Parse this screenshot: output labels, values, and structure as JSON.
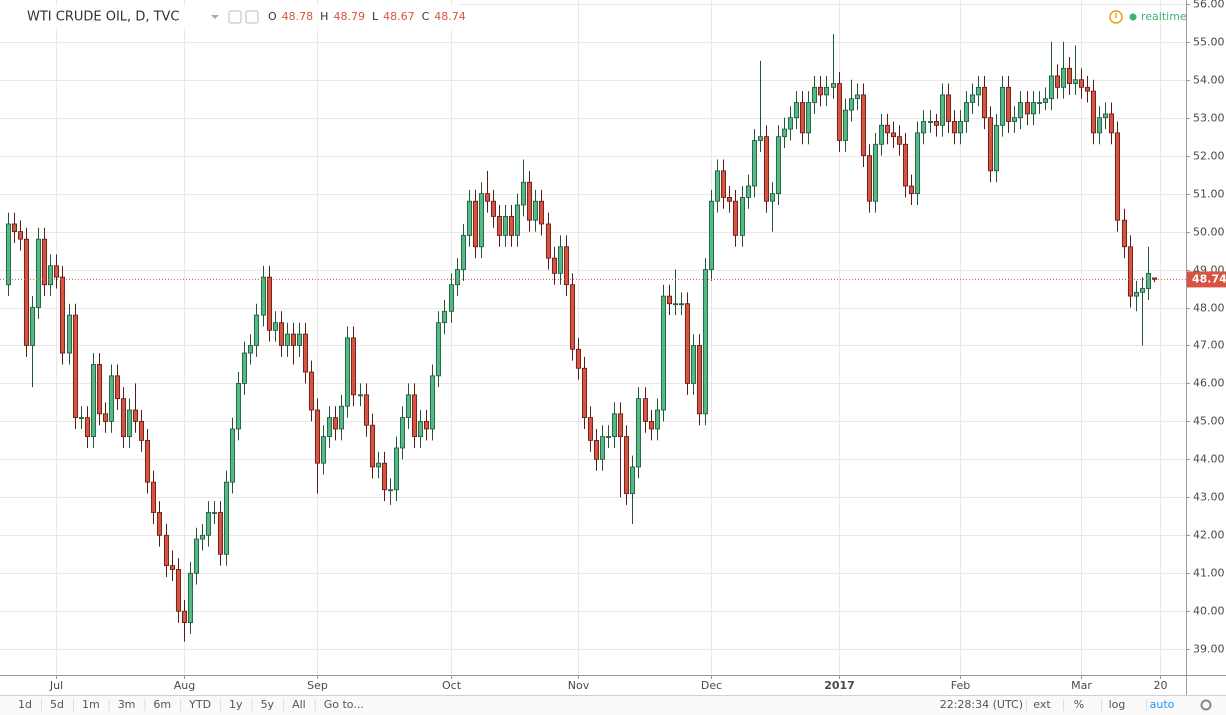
{
  "chart_data": {
    "type": "candlestick",
    "title": "WTI CRUDE OIL, D, TVC",
    "up_color": "#53b987",
    "up_border": "#225437",
    "down_color": "#d75442",
    "down_border": "#5b1a13",
    "grid": true,
    "xlim": [
      -1.3,
      194.3
    ],
    "xticks": [
      {
        "value": 8,
        "label": "Jul"
      },
      {
        "value": 29,
        "label": "Aug"
      },
      {
        "value": 51,
        "label": "Sep"
      },
      {
        "value": 73,
        "label": "Oct"
      },
      {
        "value": 94,
        "label": "Nov"
      },
      {
        "value": 116,
        "label": "Dec"
      },
      {
        "value": 137,
        "label": "2017"
      },
      {
        "value": 157,
        "label": "Feb"
      },
      {
        "value": 177,
        "label": "Mar"
      },
      {
        "value": 190,
        "label": "20"
      }
    ],
    "ylim": [
      38.32,
      56.1
    ],
    "yticks": [
      {
        "value": 39,
        "label": "39.00"
      },
      {
        "value": 40,
        "label": "40.00"
      },
      {
        "value": 41,
        "label": "41.00"
      },
      {
        "value": 42,
        "label": "42.00"
      },
      {
        "value": 43,
        "label": "43.00"
      },
      {
        "value": 44,
        "label": "44.00"
      },
      {
        "value": 45,
        "label": "45.00"
      },
      {
        "value": 46,
        "label": "46.00"
      },
      {
        "value": 47,
        "label": "47.00"
      },
      {
        "value": 48,
        "label": "48.00"
      },
      {
        "value": 49,
        "label": "49.00"
      },
      {
        "value": 50,
        "label": "50.00"
      },
      {
        "value": 51,
        "label": "51.00"
      },
      {
        "value": 52,
        "label": "52.00"
      },
      {
        "value": 53,
        "label": "53.00"
      },
      {
        "value": 54,
        "label": "54.00"
      },
      {
        "value": 55,
        "label": "55.00"
      },
      {
        "value": 56,
        "label": "56.00"
      }
    ],
    "open": [
      48.6,
      50.2,
      50.0,
      49.8,
      47.0,
      48.0,
      49.8,
      48.6,
      49.1,
      48.8,
      46.8,
      47.8,
      45.1,
      45.1,
      44.6,
      46.5,
      45.2,
      45.0,
      46.2,
      45.6,
      44.6,
      45.3,
      45.0,
      44.5,
      43.4,
      42.6,
      42.0,
      41.2,
      41.1,
      40.0,
      39.7,
      41.0,
      41.9,
      42.0,
      42.6,
      42.6,
      41.5,
      43.4,
      44.8,
      46.0,
      46.8,
      47.0,
      47.8,
      48.8,
      47.4,
      47.6,
      47.0,
      47.3,
      47.0,
      47.3,
      46.3,
      45.3,
      43.9,
      44.6,
      45.1,
      44.8,
      45.4,
      47.2,
      45.7,
      45.7,
      44.9,
      43.8,
      43.9,
      43.2,
      43.2,
      44.3,
      45.1,
      45.7,
      44.6,
      45.0,
      44.8,
      46.2,
      47.6,
      47.9,
      48.6,
      49.0,
      49.9,
      50.8,
      49.6,
      51.0,
      50.8,
      50.4,
      49.9,
      50.4,
      49.9,
      50.7,
      51.3,
      50.3,
      50.8,
      50.2,
      49.3,
      48.9,
      49.6,
      48.6,
      46.9,
      46.4,
      45.1,
      44.5,
      44.0,
      44.6,
      44.6,
      45.2,
      44.6,
      43.1,
      43.8,
      45.6,
      45.0,
      44.8,
      45.3,
      48.3,
      48.1,
      48.1,
      48.1,
      46.0,
      47.0,
      45.2,
      49.0,
      50.8,
      51.6,
      50.9,
      50.8,
      49.9,
      50.9,
      51.2,
      52.4,
      52.5,
      50.8,
      51.0,
      52.5,
      52.7,
      53.0,
      53.4,
      52.6,
      53.4,
      53.8,
      53.6,
      53.8,
      53.9,
      52.4,
      53.2,
      53.5,
      53.6,
      52.0,
      50.8,
      52.3,
      52.8,
      52.6,
      52.5,
      52.3,
      51.2,
      51.0,
      52.6,
      52.9,
      52.9,
      52.8,
      53.6,
      52.9,
      52.6,
      52.9,
      53.4,
      53.6,
      53.8,
      53.0,
      51.6,
      52.8,
      53.8,
      52.9,
      53.0,
      53.4,
      53.1,
      53.4,
      53.4,
      53.5,
      54.1,
      53.8,
      54.3,
      53.9,
      54.0,
      53.8,
      53.7,
      52.6,
      53.0,
      53.1,
      52.6,
      50.3,
      49.6,
      48.3,
      48.4,
      48.5,
      48.78
    ],
    "high": [
      50.5,
      50.5,
      50.3,
      50.1,
      48.3,
      50.1,
      50.1,
      49.4,
      49.4,
      49.1,
      48.1,
      48.1,
      45.4,
      45.4,
      46.8,
      46.8,
      45.5,
      46.5,
      46.5,
      45.9,
      45.6,
      46.0,
      45.3,
      44.8,
      43.7,
      42.9,
      42.3,
      41.6,
      41.4,
      40.3,
      41.3,
      42.2,
      42.3,
      42.9,
      42.9,
      42.9,
      43.7,
      45.1,
      46.3,
      47.1,
      47.3,
      48.1,
      49.1,
      49.1,
      47.9,
      47.9,
      47.6,
      47.6,
      47.6,
      47.6,
      46.6,
      45.6,
      44.9,
      45.4,
      45.4,
      45.7,
      47.5,
      47.5,
      46.0,
      46.0,
      45.2,
      44.2,
      44.2,
      43.5,
      44.6,
      45.4,
      46.0,
      46.0,
      45.3,
      45.3,
      46.5,
      47.9,
      48.2,
      48.9,
      49.3,
      50.2,
      51.1,
      51.1,
      51.3,
      51.6,
      51.1,
      50.7,
      50.7,
      50.7,
      51.0,
      51.9,
      51.6,
      51.1,
      51.1,
      50.5,
      49.6,
      49.9,
      49.9,
      48.9,
      47.2,
      46.7,
      45.4,
      44.8,
      44.9,
      44.9,
      45.5,
      45.5,
      44.9,
      44.1,
      45.9,
      45.9,
      45.3,
      45.6,
      48.6,
      48.6,
      49.0,
      48.4,
      48.4,
      47.3,
      47.3,
      49.3,
      51.1,
      51.9,
      51.9,
      51.2,
      51.1,
      51.2,
      51.5,
      52.7,
      54.5,
      52.8,
      51.3,
      52.8,
      53.0,
      53.3,
      53.7,
      53.7,
      53.7,
      54.1,
      54.1,
      54.1,
      55.2,
      54.2,
      53.5,
      54.0,
      53.9,
      53.9,
      52.3,
      52.6,
      53.1,
      53.1,
      52.9,
      52.8,
      52.6,
      51.5,
      52.9,
      53.2,
      53.2,
      53.1,
      53.9,
      53.9,
      53.2,
      53.2,
      53.7,
      53.9,
      54.1,
      54.1,
      53.3,
      53.1,
      54.1,
      54.1,
      53.3,
      53.7,
      53.7,
      53.7,
      53.7,
      53.8,
      55.0,
      54.4,
      55.0,
      54.6,
      54.9,
      54.3,
      54.1,
      54.0,
      53.3,
      53.4,
      53.4,
      52.9,
      50.6,
      49.9,
      48.7,
      48.8,
      49.6,
      48.79
    ],
    "low": [
      48.3,
      49.7,
      49.5,
      46.7,
      45.9,
      47.7,
      48.3,
      48.3,
      48.5,
      46.5,
      46.5,
      44.8,
      44.8,
      44.3,
      44.3,
      44.9,
      44.7,
      44.7,
      45.3,
      44.3,
      44.3,
      44.7,
      44.2,
      43.1,
      42.3,
      41.7,
      40.9,
      40.8,
      39.7,
      39.2,
      39.4,
      40.7,
      41.6,
      41.7,
      42.3,
      41.2,
      41.2,
      43.1,
      44.5,
      45.7,
      46.5,
      46.7,
      47.5,
      47.1,
      47.1,
      46.7,
      46.7,
      46.5,
      46.7,
      46.0,
      45.0,
      43.1,
      43.6,
      44.3,
      44.5,
      44.5,
      45.1,
      45.4,
      45.4,
      44.6,
      43.5,
      43.5,
      42.9,
      42.8,
      42.9,
      44.0,
      44.8,
      44.3,
      44.3,
      44.5,
      44.5,
      45.9,
      47.3,
      47.6,
      48.3,
      48.7,
      49.6,
      49.3,
      49.3,
      50.5,
      50.1,
      49.6,
      49.6,
      49.6,
      49.6,
      50.4,
      50.0,
      50.0,
      49.9,
      49.0,
      48.6,
      48.6,
      48.3,
      46.6,
      46.1,
      44.8,
      44.2,
      43.7,
      43.7,
      44.3,
      44.3,
      43.0,
      42.8,
      42.3,
      43.5,
      44.7,
      44.5,
      44.5,
      45.0,
      47.8,
      47.8,
      47.8,
      45.7,
      45.7,
      44.9,
      44.9,
      48.7,
      50.5,
      50.6,
      50.5,
      49.6,
      49.6,
      50.6,
      50.9,
      52.1,
      50.5,
      50.0,
      50.7,
      52.2,
      52.4,
      52.7,
      52.3,
      52.3,
      53.1,
      53.3,
      53.3,
      53.5,
      52.1,
      52.1,
      52.9,
      53.2,
      51.7,
      50.5,
      50.5,
      52.0,
      52.3,
      52.2,
      52.0,
      50.9,
      50.7,
      50.7,
      52.3,
      52.6,
      52.5,
      52.5,
      52.6,
      52.3,
      52.3,
      52.6,
      53.1,
      53.3,
      52.7,
      51.3,
      51.3,
      52.5,
      52.6,
      52.6,
      52.7,
      52.8,
      52.8,
      53.1,
      53.2,
      53.2,
      53.5,
      53.5,
      53.6,
      53.6,
      53.5,
      53.4,
      52.3,
      52.3,
      52.7,
      52.3,
      50.0,
      49.3,
      48.0,
      47.9,
      47.0,
      48.2,
      48.67
    ],
    "close": [
      50.2,
      50.0,
      49.8,
      47.0,
      48.0,
      49.8,
      48.6,
      49.1,
      48.8,
      46.8,
      47.8,
      45.1,
      45.1,
      44.6,
      46.5,
      45.2,
      45.0,
      46.2,
      45.6,
      44.6,
      45.3,
      45.0,
      44.5,
      43.4,
      42.6,
      42.0,
      41.2,
      41.1,
      40.0,
      39.7,
      41.0,
      41.9,
      42.0,
      42.6,
      42.6,
      41.5,
      43.4,
      44.8,
      46.0,
      46.8,
      47.0,
      47.8,
      48.8,
      47.4,
      47.6,
      47.0,
      47.3,
      47.0,
      47.3,
      46.3,
      45.3,
      43.9,
      44.6,
      45.1,
      44.8,
      45.4,
      47.2,
      45.7,
      45.7,
      44.9,
      43.8,
      43.9,
      43.2,
      43.2,
      44.3,
      45.1,
      45.7,
      44.6,
      45.0,
      44.8,
      46.2,
      47.6,
      47.9,
      48.6,
      49.0,
      49.9,
      50.8,
      49.6,
      51.0,
      50.8,
      50.4,
      49.9,
      50.4,
      49.9,
      50.7,
      51.3,
      50.3,
      50.8,
      50.2,
      49.3,
      48.9,
      49.6,
      48.6,
      46.9,
      46.4,
      45.1,
      44.5,
      44.0,
      44.6,
      44.6,
      45.2,
      44.6,
      43.1,
      43.8,
      45.6,
      45.0,
      44.8,
      45.3,
      48.3,
      48.1,
      48.1,
      48.1,
      46.0,
      47.0,
      45.2,
      49.0,
      50.8,
      51.6,
      50.9,
      50.8,
      49.9,
      50.9,
      51.2,
      52.4,
      52.5,
      50.8,
      51.0,
      52.5,
      52.7,
      53.0,
      53.4,
      52.6,
      53.4,
      53.8,
      53.6,
      53.8,
      53.9,
      52.4,
      53.2,
      53.5,
      53.6,
      52.0,
      50.8,
      52.3,
      52.8,
      52.6,
      52.5,
      52.3,
      51.2,
      51.0,
      52.6,
      52.9,
      52.9,
      52.8,
      53.6,
      52.9,
      52.6,
      52.9,
      53.4,
      53.6,
      53.8,
      53.0,
      51.6,
      52.8,
      53.8,
      52.9,
      53.0,
      53.4,
      53.1,
      53.4,
      53.4,
      53.5,
      54.1,
      53.8,
      54.3,
      53.9,
      54.0,
      53.8,
      53.7,
      52.6,
      53.0,
      53.1,
      52.6,
      50.3,
      49.6,
      48.3,
      48.4,
      48.5,
      48.9,
      48.74
    ]
  },
  "ui": {
    "ohlc_labels": [
      "O",
      "H",
      "L",
      "C"
    ],
    "status": "realtime",
    "ranges": [
      "1d",
      "5d",
      "1m",
      "3m",
      "6m",
      "YTD",
      "1y",
      "5y",
      "All"
    ],
    "goto": "Go to...",
    "clock": "22:28:34 (UTC)",
    "options": [
      "ext",
      "%",
      "log",
      "auto"
    ]
  }
}
